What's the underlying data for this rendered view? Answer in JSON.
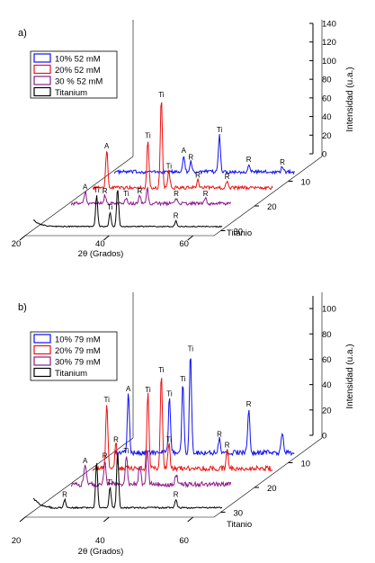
{
  "chart_data": [
    {
      "type": "line",
      "panel_label": "a)",
      "xlabel": "2θ (Grados)",
      "x_ticks": [
        "20",
        "40",
        "60"
      ],
      "zlabel": "Intensidad (u.a.)",
      "z_ticks": [
        "0",
        "20",
        "40",
        "60",
        "80",
        "100",
        "120",
        "140"
      ],
      "zlim": [
        0,
        140
      ],
      "depth_label": "Titanio",
      "depth_ticks": [
        "10",
        "20",
        "30"
      ],
      "legend": [
        "10% 52 mM",
        "20% 52 mM",
        "30 % 52 mM",
        "Titanium"
      ],
      "series": [
        {
          "name": "10% 52 mM",
          "color": "#1010ee",
          "peaks": [
            {
              "x": 38.5,
              "h": 25,
              "label": "A"
            },
            {
              "x": 40.2,
              "h": 15,
              "label": "R"
            },
            {
              "x": 47.0,
              "h": 55,
              "label": "Ti"
            },
            {
              "x": 54.0,
              "h": 12,
              "label": "R"
            },
            {
              "x": 62.0,
              "h": 8,
              "label": "R"
            }
          ]
        },
        {
          "name": "20% 52 mM",
          "color": "#ee1010",
          "peaks": [
            {
              "x": 25.3,
              "h": 55,
              "label": "A"
            },
            {
              "x": 35.1,
              "h": 70,
              "label": "Ti"
            },
            {
              "x": 38.3,
              "h": 130,
              "label": "Ti"
            },
            {
              "x": 40.1,
              "h": 25,
              "label": "Ti"
            },
            {
              "x": 47.0,
              "h": 12,
              "label": "R"
            },
            {
              "x": 54.0,
              "h": 10,
              "label": "R"
            }
          ]
        },
        {
          "name": "30 % 52 mM",
          "color": "#8c1a8c",
          "peaks": [
            {
              "x": 25.3,
              "h": 18,
              "label": "A"
            },
            {
              "x": 30.0,
              "h": 12,
              "label": "R"
            },
            {
              "x": 35.1,
              "h": 8,
              "label": "Ti"
            },
            {
              "x": 38.3,
              "h": 12,
              "label": "R"
            },
            {
              "x": 40.1,
              "h": 22,
              "label": ""
            },
            {
              "x": 47.0,
              "h": 8,
              "label": "R"
            },
            {
              "x": 54.0,
              "h": 8,
              "label": "R"
            }
          ]
        },
        {
          "name": "Titanium",
          "color": "#000000",
          "peaks": [
            {
              "x": 35.1,
              "h": 45,
              "label": "Ti"
            },
            {
              "x": 38.3,
              "h": 20,
              "label": "Ti"
            },
            {
              "x": 40.1,
              "h": 55,
              "label": ""
            },
            {
              "x": 54.0,
              "h": 8,
              "label": "R"
            }
          ]
        }
      ]
    },
    {
      "type": "line",
      "panel_label": "b)",
      "xlabel": "2θ (Grados)",
      "x_ticks": [
        "20",
        "40",
        "60"
      ],
      "zlabel": "Intensidad (u.a.)",
      "z_ticks": [
        "0",
        "20",
        "40",
        "60",
        "80",
        "100"
      ],
      "zlim": [
        0,
        110
      ],
      "depth_label": "Titanio",
      "depth_ticks": [
        "10",
        "20",
        "30"
      ],
      "legend": [
        "10% 79 mM",
        "20% 79 mM",
        "30% 79 mM",
        "Titanium"
      ],
      "series": [
        {
          "name": "10% 79 mM",
          "color": "#1010ee",
          "peaks": [
            {
              "x": 25.3,
              "h": 60,
              "label": "A"
            },
            {
              "x": 35.1,
              "h": 55,
              "label": "Ti"
            },
            {
              "x": 38.3,
              "h": 70,
              "label": "Ti"
            },
            {
              "x": 40.1,
              "h": 100,
              "label": "Ti"
            },
            {
              "x": 47.0,
              "h": 15,
              "label": "R"
            },
            {
              "x": 54.0,
              "h": 45,
              "label": "R"
            },
            {
              "x": 62.0,
              "h": 20,
              "label": ""
            }
          ]
        },
        {
          "name": "20% 79 mM",
          "color": "#ee1010",
          "peaks": [
            {
              "x": 25.3,
              "h": 65,
              "label": "Ti"
            },
            {
              "x": 27.5,
              "h": 25,
              "label": "R"
            },
            {
              "x": 35.1,
              "h": 75,
              "label": "Ti"
            },
            {
              "x": 38.3,
              "h": 95,
              "label": "Ti"
            },
            {
              "x": 40.1,
              "h": 25,
              "label": "Ti"
            },
            {
              "x": 54.0,
              "h": 20,
              "label": "R"
            }
          ]
        },
        {
          "name": "30% 79 mM",
          "color": "#8c1a8c",
          "peaks": [
            {
              "x": 25.3,
              "h": 20,
              "label": "A"
            },
            {
              "x": 30.0,
              "h": 25,
              "label": "R"
            },
            {
              "x": 35.1,
              "h": 30,
              "label": "Ti"
            },
            {
              "x": 38.3,
              "h": 20,
              "label": ""
            },
            {
              "x": 40.1,
              "h": 35,
              "label": ""
            },
            {
              "x": 47.0,
              "h": 10,
              "label": ""
            }
          ]
        },
        {
          "name": "Titanium",
          "color": "#000000",
          "peaks": [
            {
              "x": 27.5,
              "h": 8,
              "label": "R"
            },
            {
              "x": 35.1,
              "h": 45,
              "label": ""
            },
            {
              "x": 38.3,
              "h": 20,
              "label": "Ti"
            },
            {
              "x": 40.1,
              "h": 55,
              "label": ""
            },
            {
              "x": 54.0,
              "h": 8,
              "label": "R"
            }
          ]
        }
      ]
    }
  ]
}
